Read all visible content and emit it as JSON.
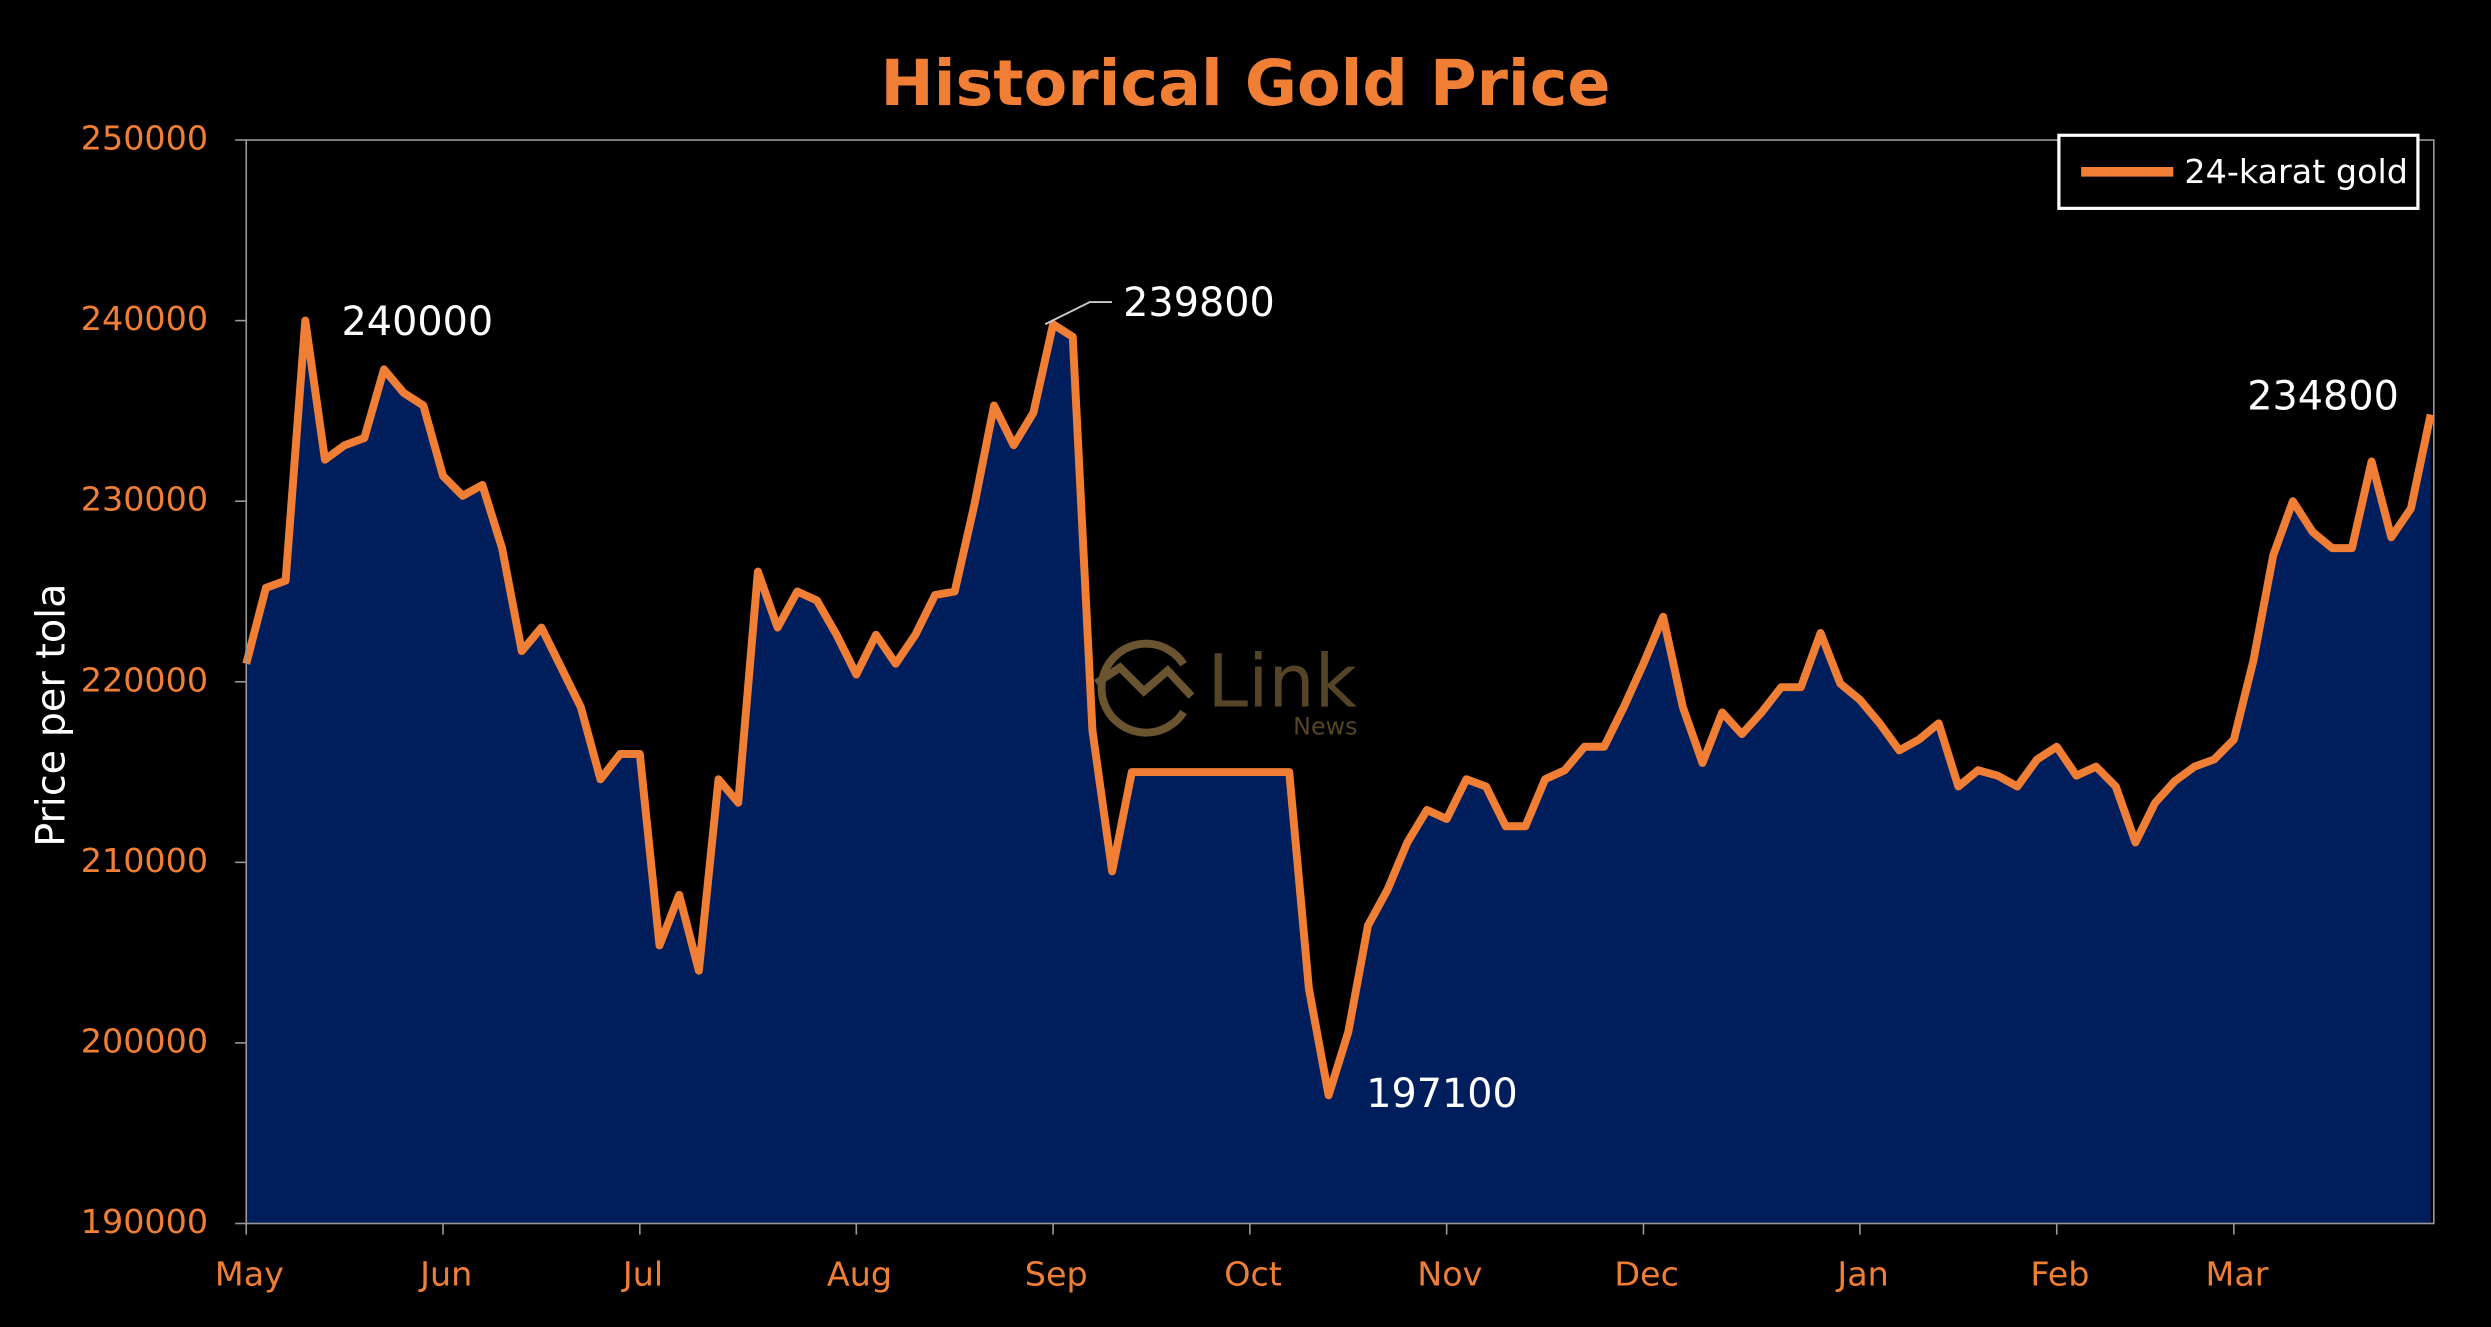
{
  "chart_data": {
    "type": "area",
    "title": "Historical Gold Price",
    "y_label": "Price per tola",
    "watermark": {
      "text": "Link",
      "subtext": "News"
    },
    "legend": "upper right",
    "categories": [
      "May",
      null,
      null,
      null,
      null,
      null,
      null,
      null,
      null,
      null,
      "Jun",
      null,
      null,
      null,
      null,
      null,
      null,
      null,
      null,
      null,
      "Jul",
      null,
      null,
      null,
      null,
      null,
      null,
      null,
      null,
      null,
      null,
      "Aug",
      null,
      null,
      null,
      null,
      null,
      null,
      null,
      null,
      null,
      "Sep",
      null,
      null,
      null,
      null,
      null,
      null,
      null,
      null,
      null,
      "Oct",
      null,
      null,
      null,
      null,
      null,
      null,
      null,
      null,
      null,
      "Nov",
      null,
      null,
      null,
      null,
      null,
      null,
      null,
      null,
      null,
      "Dec",
      null,
      null,
      null,
      null,
      null,
      null,
      null,
      null,
      null,
      null,
      "Jan",
      null,
      null,
      null,
      null,
      null,
      null,
      null,
      null,
      null,
      "Feb",
      null,
      null,
      null,
      null,
      null,
      null,
      null,
      null,
      "Mar",
      null,
      null,
      null,
      null,
      null,
      null,
      null,
      null,
      null,
      null
    ],
    "series": [
      {
        "name": "24-karat gold",
        "color": "#f07f35",
        "fill": "#002060",
        "values": [
          221000,
          225200,
          225600,
          240000,
          232300,
          233100,
          233500,
          237300,
          236000,
          235300,
          231400,
          230300,
          230900,
          227400,
          221700,
          223000,
          220800,
          218600,
          214600,
          216000,
          216000,
          205400,
          208200,
          204000,
          214600,
          213300,
          226100,
          223000,
          225000,
          224500,
          222600,
          220400,
          222600,
          221000,
          222600,
          224800,
          225000,
          229800,
          235300,
          233100,
          234900,
          239800,
          239100,
          217300,
          209500,
          215000,
          215000,
          215000,
          215000,
          215000,
          215000,
          215000,
          215000,
          215000,
          203000,
          197100,
          200600,
          206500,
          208500,
          211100,
          212900,
          212400,
          214600,
          214200,
          212000,
          212000,
          214600,
          215100,
          216400,
          216400,
          218600,
          221000,
          223600,
          218600,
          215500,
          218300,
          217100,
          218300,
          219700,
          219700,
          222700,
          219900,
          219000,
          217700,
          216200,
          216800,
          217700,
          214200,
          215100,
          214800,
          214200,
          215700,
          216400,
          214800,
          215300,
          214200,
          211100,
          213300,
          214500,
          215300,
          215700,
          216800,
          221200,
          227000,
          230000,
          228300,
          227400,
          227400,
          232200,
          228000,
          229600,
          234800
        ]
      }
    ],
    "ylim": [
      190000,
      250000
    ],
    "yticks": [
      190000,
      200000,
      210000,
      220000,
      230000,
      240000,
      250000
    ]
  }
}
